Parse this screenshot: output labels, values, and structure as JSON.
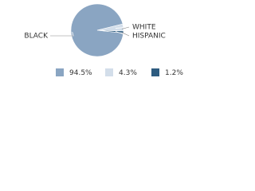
{
  "chart_data": {
    "type": "pie",
    "categories": [
      "BLACK",
      "WHITE",
      "HISPANIC"
    ],
    "values": [
      94.5,
      4.3,
      1.2
    ],
    "value_labels": [
      "94.5%",
      "4.3%",
      "1.2%"
    ],
    "colors": [
      "#8aa5c2",
      "#d3deea",
      "#2e5c80"
    ]
  }
}
